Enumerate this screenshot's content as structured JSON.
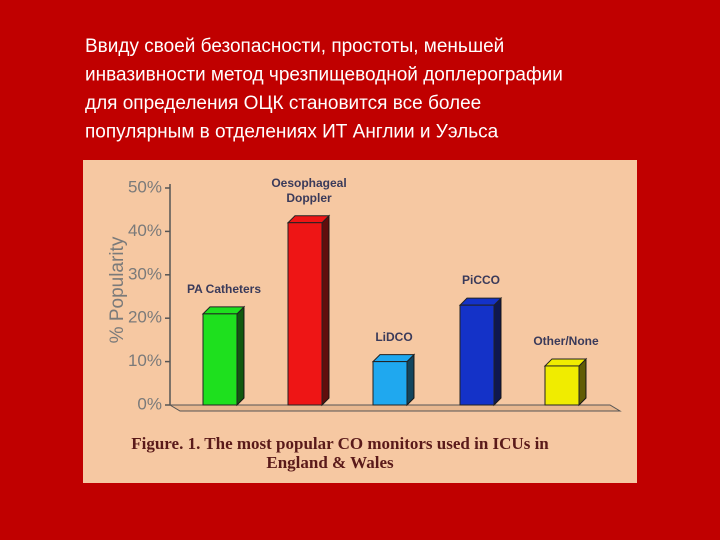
{
  "slide": {
    "text_lines": [
      "Ввиду своей безопасности, простоты, меньшей",
      "инвазивности метод чрезпищеводной доплерографии",
      "для определения ОЦК становится все более",
      "популярным  в отделениях ИТ Англии и Уэльса"
    ]
  },
  "chart_data": {
    "type": "bar",
    "y_label": "% Popularity",
    "caption_lines": [
      "Figure. 1.  The most popular CO monitors used in ICUs  in",
      "England & Wales"
    ],
    "categories": [
      "PA Catheters",
      "Oesophageal Doppler",
      "LiDCO",
      "PiCCO",
      "Other/None"
    ],
    "values": [
      21,
      42,
      10,
      23,
      9
    ],
    "colors": [
      "#1ee01e",
      "#ee1515",
      "#1fa8ef",
      "#1432c8",
      "#f0ec00"
    ],
    "ylim": [
      0,
      50
    ],
    "yticks": [
      {
        "value": 0,
        "label": "0%"
      },
      {
        "value": 10,
        "label": "10%"
      },
      {
        "value": 20,
        "label": "20%"
      },
      {
        "value": 30,
        "label": "30%"
      },
      {
        "value": 40,
        "label": "40%"
      },
      {
        "value": 50,
        "label": "50%"
      }
    ]
  }
}
